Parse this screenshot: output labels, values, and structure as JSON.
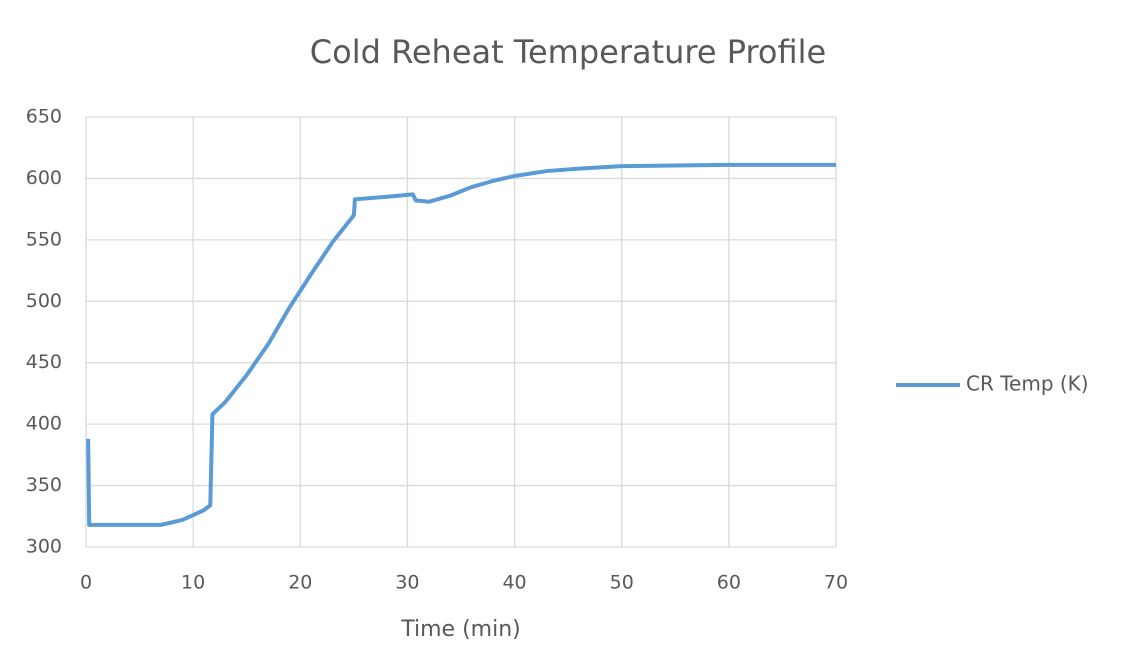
{
  "chart_data": {
    "type": "line",
    "title": "Cold Reheat Temperature Profile",
    "x_label": "Time (min)",
    "x": [
      0.2,
      0.3,
      7,
      9,
      11,
      11.6,
      11.8,
      13,
      15,
      17,
      19,
      21,
      23,
      25,
      25.1,
      28,
      30.5,
      30.8,
      32,
      34,
      36,
      38,
      40,
      43,
      46,
      50,
      55,
      60,
      70
    ],
    "series": [
      {
        "name": "CR Temp (K)",
        "color": "#5b9bd5",
        "values": [
          388,
          318,
          318,
          322,
          330,
          334,
          408,
          418,
          440,
          465,
          495,
          522,
          548,
          570,
          583,
          585,
          587,
          582,
          581,
          586,
          593,
          598,
          602,
          606,
          608,
          610,
          610.5,
          611,
          611
        ]
      }
    ],
    "xlim": [
      0,
      70
    ],
    "xticks": [
      0,
      10,
      20,
      30,
      40,
      50,
      60,
      70
    ],
    "ylim": [
      300,
      650
    ],
    "yticks": [
      300,
      350,
      400,
      450,
      500,
      550,
      600,
      650
    ],
    "grid": true,
    "legend": "right"
  }
}
